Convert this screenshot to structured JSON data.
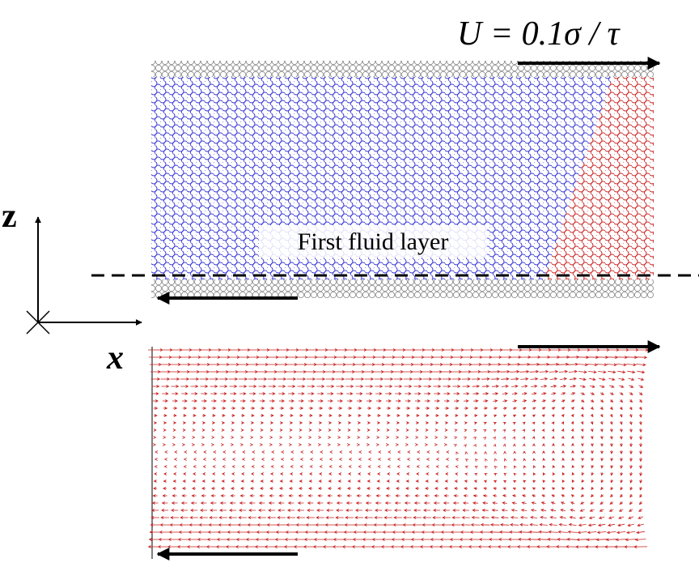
{
  "equation": "U = 0.1σ / τ",
  "layer_label": "First fluid layer",
  "axes": {
    "z": "z",
    "x": "x"
  }
}
